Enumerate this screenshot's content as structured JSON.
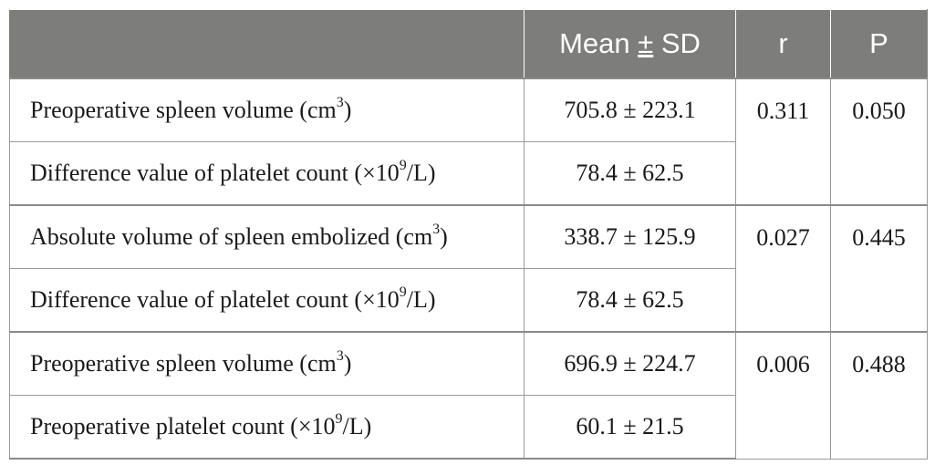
{
  "header": {
    "blank": "",
    "mean_label": "Mean ",
    "mean_pm": "±",
    "mean_sd": " SD",
    "r": "r",
    "p": "P"
  },
  "groups": [
    {
      "r": "0.311",
      "p": "0.050",
      "rows": [
        {
          "label": "Preoperative spleen volume (cm",
          "sup": "3",
          "suffix": ")",
          "value": "705.8 ± 223.1"
        },
        {
          "label": "Difference value of platelet count (×10",
          "sup": "9",
          "suffix": "/L)",
          "value": "78.4 ± 62.5"
        }
      ]
    },
    {
      "r": "0.027",
      "p": "0.445",
      "rows": [
        {
          "label": "Absolute volume of spleen embolized (cm",
          "sup": "3",
          "suffix": ")",
          "value": "338.7 ± 125.9"
        },
        {
          "label": "Difference value of platelet count (×10",
          "sup": "9",
          "suffix": "/L)",
          "value": "78.4 ± 62.5"
        }
      ]
    },
    {
      "r": "0.006",
      "p": "0.488",
      "rows": [
        {
          "label": "Preoperative spleen volume (cm",
          "sup": "3",
          "suffix": ")",
          "value": "696.9 ± 224.7"
        },
        {
          "label": "Preoperative platelet count (×10",
          "sup": "9",
          "suffix": "/L)",
          "value": "60.1 ± 21.5"
        }
      ]
    }
  ]
}
